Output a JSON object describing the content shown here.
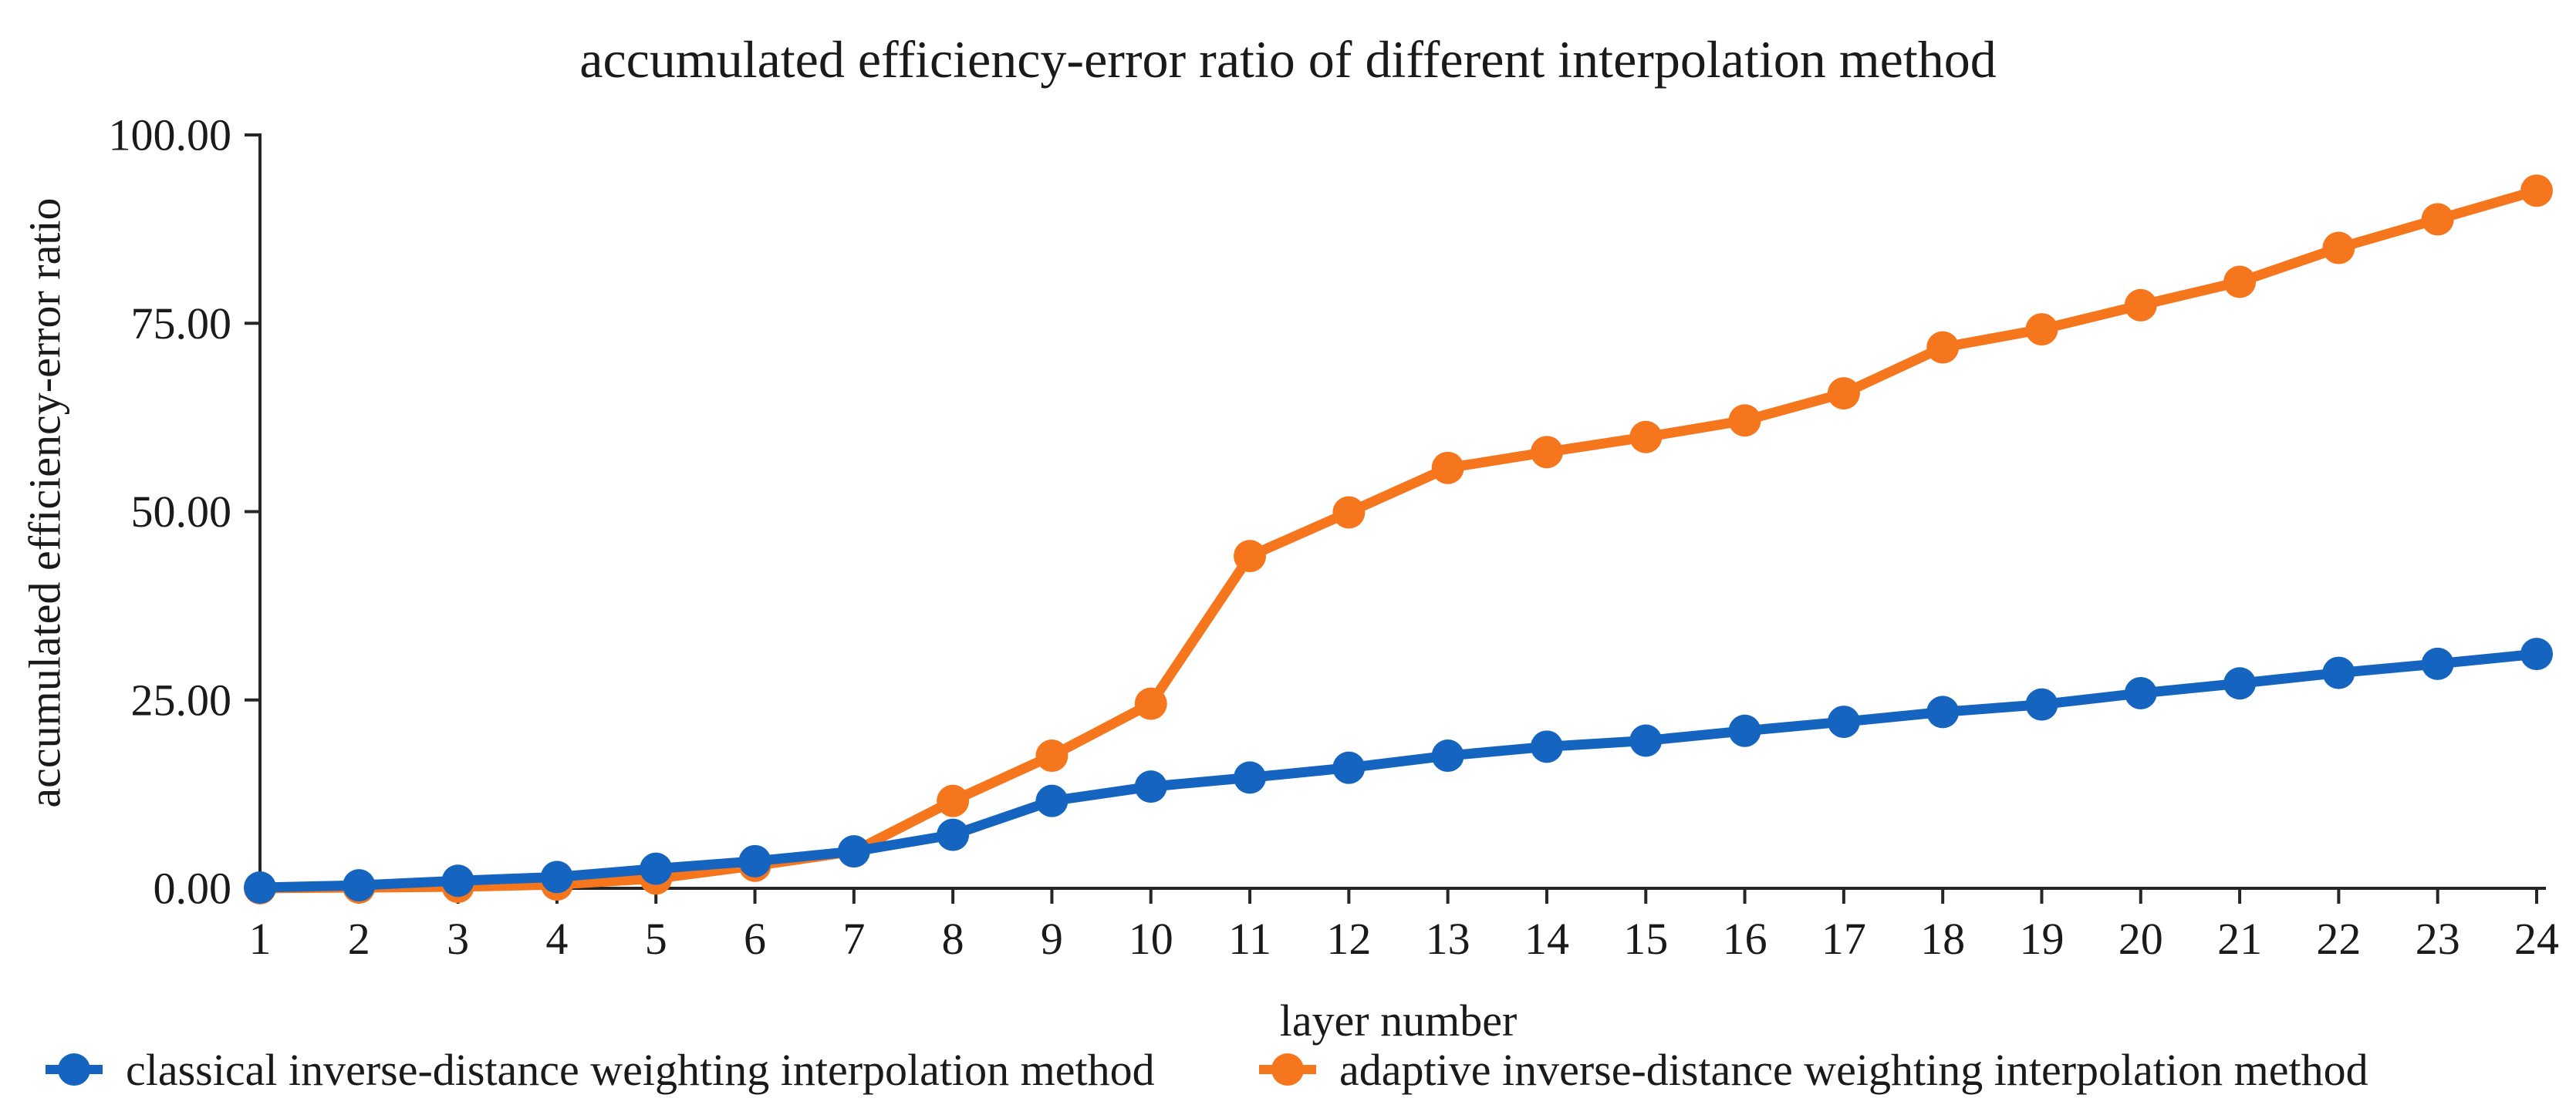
{
  "chart_data": {
    "type": "line",
    "title": "accumulated efficiency-error ratio of different interpolation method",
    "xlabel": "layer number",
    "ylabel": "accumulated efficiency-error ratio",
    "x": [
      1,
      2,
      3,
      4,
      5,
      6,
      7,
      8,
      9,
      10,
      11,
      12,
      13,
      14,
      15,
      16,
      17,
      18,
      19,
      20,
      21,
      22,
      23,
      24
    ],
    "y_ticks": [
      0,
      25,
      50,
      75,
      100
    ],
    "y_tick_labels": [
      "0.00",
      "25.00",
      "50.00",
      "75.00",
      "100.00"
    ],
    "ylim": [
      0,
      100
    ],
    "grid": false,
    "legend_position": "bottom",
    "axis_color": "#262626",
    "series": [
      {
        "name": "classical inverse-distance weighting interpolation method",
        "color": "#1565c0",
        "values": [
          0.1,
          0.4,
          1.0,
          1.5,
          2.6,
          3.6,
          4.9,
          7.1,
          11.6,
          13.5,
          14.7,
          16.0,
          17.6,
          18.8,
          19.6,
          20.9,
          22.1,
          23.4,
          24.4,
          25.9,
          27.2,
          28.6,
          29.8,
          31.1
        ]
      },
      {
        "name": "adaptive inverse-distance weighting interpolation method",
        "color": "#f6761d",
        "values": [
          0.0,
          0.1,
          0.2,
          0.5,
          1.3,
          3.0,
          4.9,
          11.6,
          17.6,
          24.5,
          44.1,
          49.9,
          55.8,
          57.9,
          59.9,
          62.1,
          65.7,
          71.8,
          74.2,
          77.4,
          80.5,
          85.0,
          88.8,
          92.6
        ]
      }
    ]
  }
}
